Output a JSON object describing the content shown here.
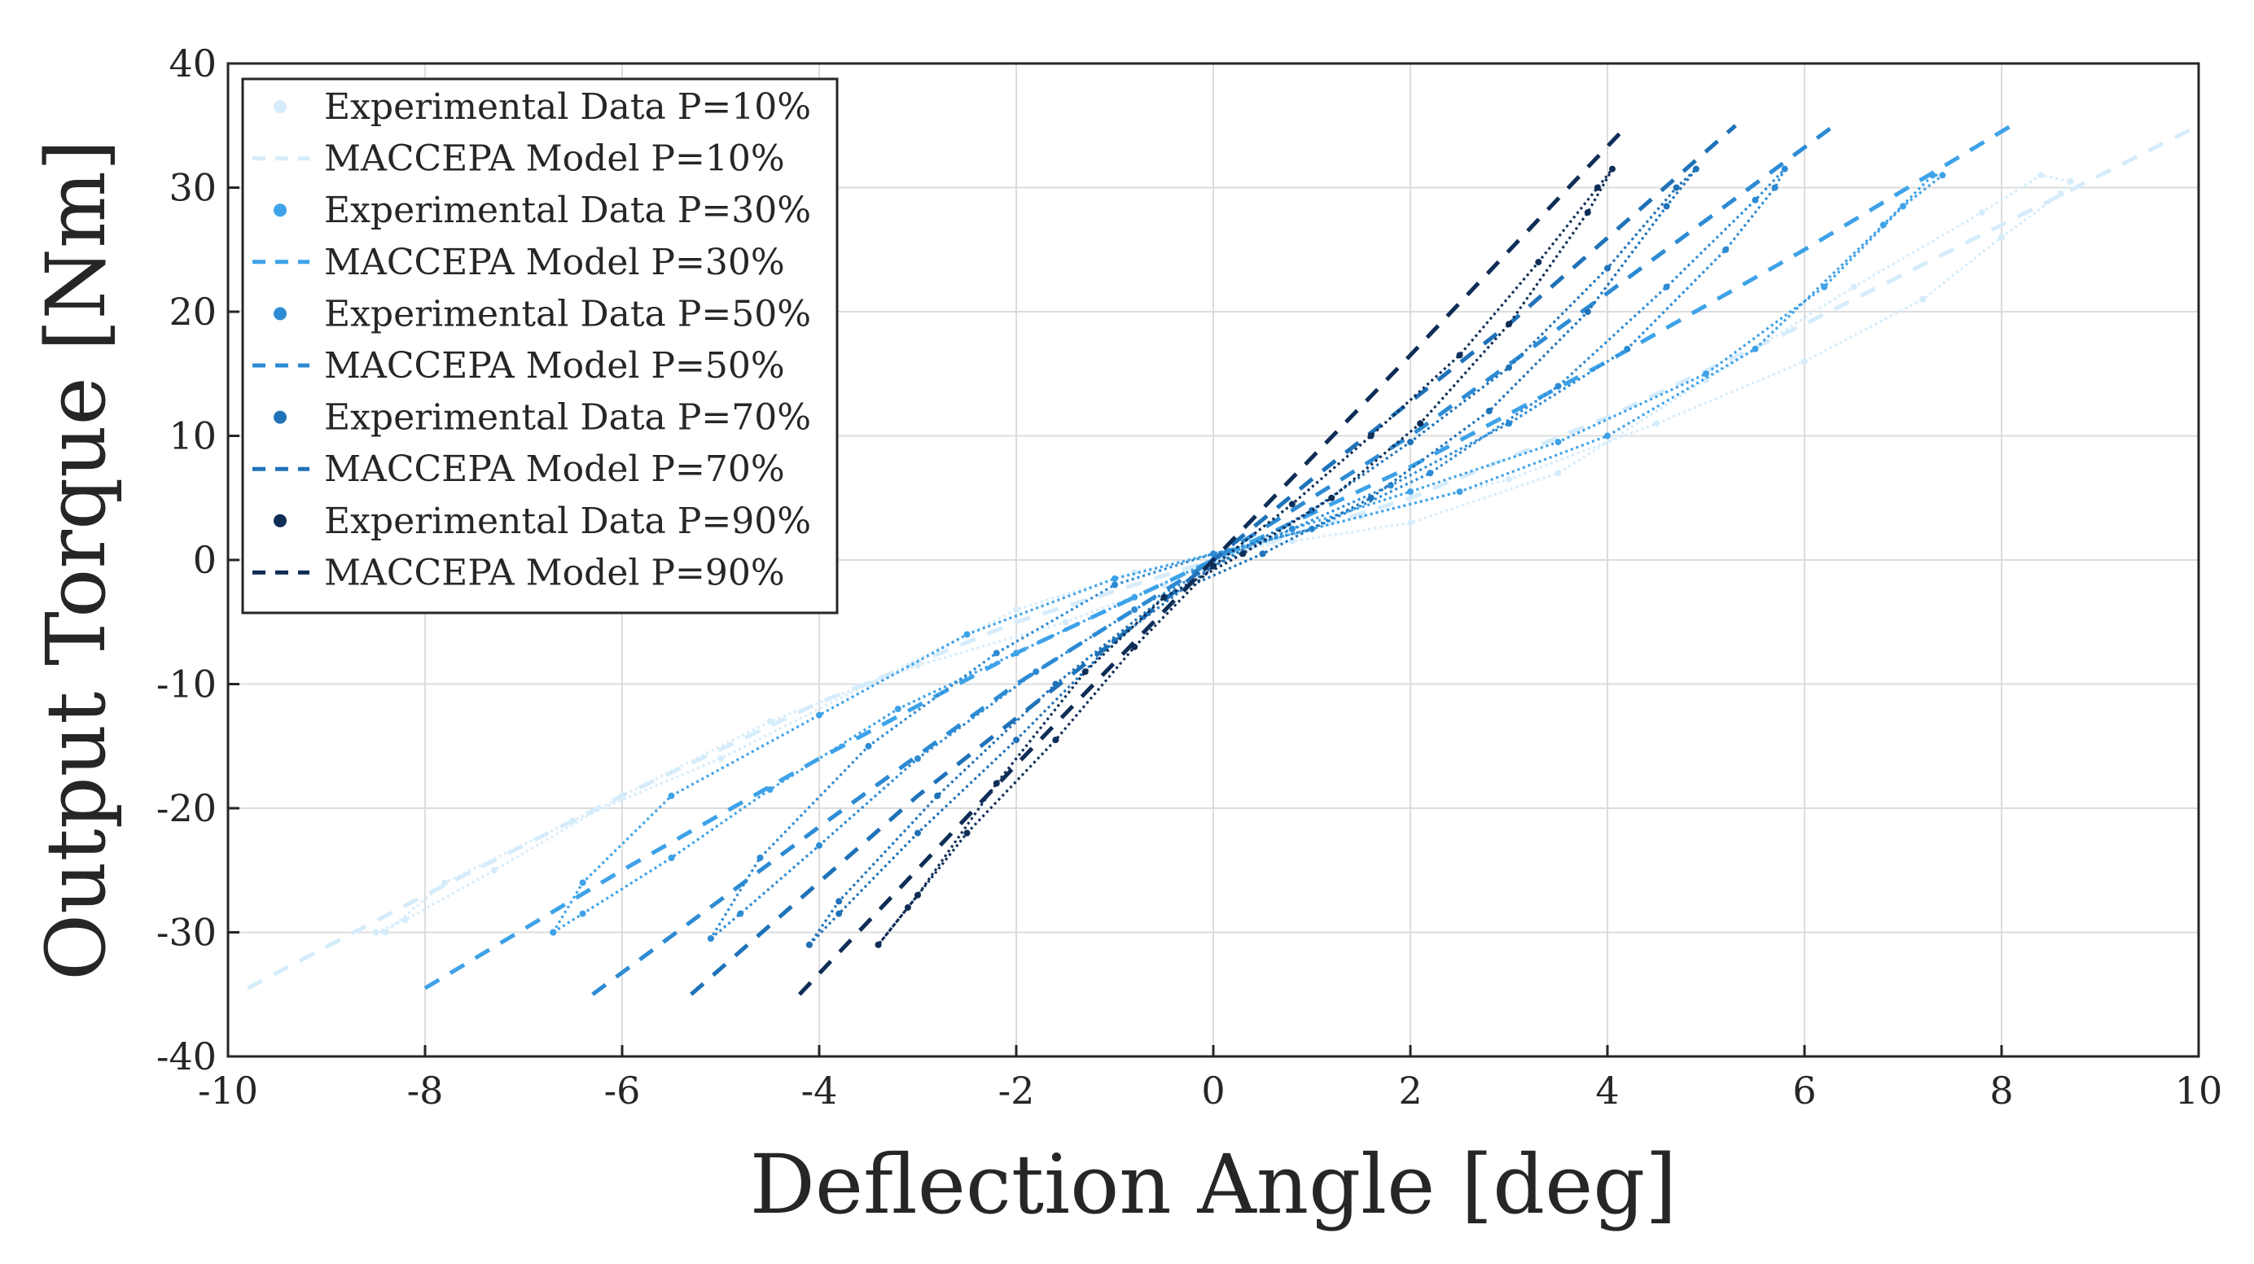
{
  "chart_data": {
    "type": "line",
    "xlabel": "Deflection Angle [deg]",
    "ylabel": "Output Torque [Nm]",
    "xlim": [
      -10,
      10
    ],
    "ylim": [
      -40,
      40
    ],
    "xticks": [
      -10,
      -8,
      -6,
      -4,
      -2,
      0,
      2,
      4,
      6,
      8,
      10
    ],
    "yticks": [
      -40,
      -30,
      -20,
      -10,
      0,
      10,
      20,
      30,
      40
    ],
    "xtick_labels": [
      "-10",
      "-8",
      "-6",
      "-4",
      "-2",
      "0",
      "2",
      "4",
      "6",
      "8",
      "10"
    ],
    "ytick_labels": [
      "-40",
      "-30",
      "-20",
      "-10",
      "0",
      "10",
      "20",
      "30",
      "40"
    ],
    "grid": true,
    "legend_position": "top-left",
    "series": [
      {
        "name": "Experimental Data P=10%",
        "style": "dots",
        "color": "#d6ecfb",
        "x": [
          -8.5,
          -8.2,
          -7.3,
          -6.0,
          -4.5,
          -3.0,
          -1.5,
          -0.5,
          0.0,
          0.5,
          1.5,
          3.0,
          4.5,
          6.0,
          7.2,
          8.0,
          8.6,
          8.7,
          8.4,
          7.8,
          6.5,
          5.0,
          3.5,
          2.0,
          0.8,
          0.0,
          -0.8,
          -2.0,
          -3.5,
          -5.0,
          -6.5,
          -7.8,
          -8.4,
          -8.5
        ],
        "y": [
          -30.0,
          -29.0,
          -25.0,
          -19.0,
          -13.0,
          -8.5,
          -5.0,
          -2.0,
          0.0,
          1.5,
          3.5,
          6.5,
          11.0,
          16.0,
          21.0,
          26.0,
          29.5,
          30.5,
          31.0,
          28.0,
          22.0,
          14.5,
          7.0,
          3.0,
          1.5,
          0.5,
          -1.0,
          -4.0,
          -10.0,
          -16.0,
          -21.0,
          -26.0,
          -30.0,
          -30.0
        ]
      },
      {
        "name": "MACCEPA Model P=10%",
        "style": "dashed",
        "color": "#d6ecfb",
        "x": [
          -9.8,
          -8.0,
          -6.0,
          -4.0,
          -2.0,
          0.0,
          2.0,
          4.0,
          6.0,
          8.0,
          10.0
        ],
        "y": [
          -34.5,
          -27.0,
          -19.0,
          -11.5,
          -5.0,
          0.0,
          5.0,
          11.5,
          19.0,
          27.0,
          35.0
        ]
      },
      {
        "name": "Experimental Data P=30%",
        "style": "dots",
        "color": "#3ea2e8",
        "x": [
          -6.7,
          -6.4,
          -5.5,
          -4.5,
          -3.2,
          -2.0,
          -0.8,
          0.0,
          0.8,
          2.0,
          3.5,
          5.0,
          6.2,
          7.0,
          7.4,
          7.3,
          6.8,
          5.5,
          4.0,
          2.5,
          1.0,
          0.0,
          -1.0,
          -2.5,
          -4.0,
          -5.5,
          -6.4,
          -6.7
        ],
        "y": [
          -30.0,
          -28.5,
          -24.0,
          -18.5,
          -12.0,
          -7.5,
          -3.0,
          0.0,
          2.5,
          5.5,
          9.5,
          15.0,
          22.0,
          28.5,
          31.0,
          31.0,
          27.0,
          17.0,
          10.0,
          5.5,
          2.5,
          0.5,
          -1.5,
          -6.0,
          -12.5,
          -19.0,
          -26.0,
          -30.0
        ]
      },
      {
        "name": "MACCEPA Model P=30%",
        "style": "dashed",
        "color": "#3ea2e8",
        "x": [
          -8.0,
          -6.0,
          -4.0,
          -2.0,
          0.0,
          2.0,
          4.0,
          6.0,
          8.1
        ],
        "y": [
          -34.5,
          -25.0,
          -16.0,
          -7.5,
          0.0,
          7.5,
          16.0,
          25.0,
          35.0
        ]
      },
      {
        "name": "Experimental Data P=50%",
        "style": "dots",
        "color": "#2d8bd4",
        "x": [
          -5.1,
          -4.8,
          -4.0,
          -3.0,
          -1.8,
          -0.8,
          0.0,
          0.8,
          1.8,
          3.0,
          4.2,
          5.2,
          5.7,
          5.8,
          5.5,
          4.6,
          3.5,
          2.2,
          1.0,
          0.0,
          -1.0,
          -2.2,
          -3.5,
          -4.6,
          -5.1
        ],
        "y": [
          -30.5,
          -28.5,
          -23.0,
          -16.0,
          -9.0,
          -4.0,
          -0.5,
          2.5,
          6.0,
          11.0,
          17.0,
          25.0,
          30.0,
          31.5,
          29.0,
          22.0,
          14.0,
          7.0,
          2.5,
          0.5,
          -2.0,
          -7.5,
          -15.0,
          -24.0,
          -30.5
        ]
      },
      {
        "name": "MACCEPA Model P=50%",
        "style": "dashed",
        "color": "#2d8bd4",
        "x": [
          -6.3,
          -4.0,
          -2.0,
          0.0,
          2.0,
          4.0,
          6.3
        ],
        "y": [
          -35.0,
          -21.5,
          -10.0,
          0.0,
          10.0,
          21.5,
          35.0
        ]
      },
      {
        "name": "Experimental Data P=70%",
        "style": "dots",
        "color": "#1f72b8",
        "x": [
          -4.1,
          -3.8,
          -3.0,
          -2.0,
          -1.0,
          0.0,
          1.0,
          2.0,
          3.0,
          4.0,
          4.7,
          4.9,
          4.6,
          3.8,
          2.8,
          1.6,
          0.5,
          -0.5,
          -1.6,
          -2.8,
          -3.8,
          -4.1
        ],
        "y": [
          -31.0,
          -28.5,
          -22.0,
          -14.5,
          -6.5,
          -0.5,
          4.0,
          9.5,
          15.5,
          23.5,
          30.0,
          31.5,
          28.5,
          20.0,
          12.0,
          5.0,
          0.5,
          -3.0,
          -10.0,
          -19.0,
          -27.5,
          -31.0
        ]
      },
      {
        "name": "MACCEPA Model P=70%",
        "style": "dashed",
        "color": "#1f72b8",
        "x": [
          -5.3,
          -3.0,
          -1.0,
          0.0,
          1.0,
          3.0,
          5.3
        ],
        "y": [
          -35.0,
          -19.0,
          -6.5,
          0.0,
          6.5,
          19.0,
          35.0
        ]
      },
      {
        "name": "Experimental Data P=90%",
        "style": "dots",
        "color": "#0e2d57",
        "x": [
          -3.4,
          -3.1,
          -2.5,
          -1.6,
          -0.8,
          0.0,
          0.8,
          1.6,
          2.5,
          3.3,
          3.9,
          4.05,
          3.8,
          3.0,
          2.1,
          1.2,
          0.3,
          -0.5,
          -1.3,
          -2.2,
          -3.0,
          -3.4
        ],
        "y": [
          -31.0,
          -28.0,
          -22.0,
          -14.5,
          -7.0,
          -0.5,
          4.5,
          10.0,
          16.5,
          24.0,
          30.0,
          31.5,
          28.0,
          19.0,
          11.0,
          5.0,
          0.5,
          -3.0,
          -9.0,
          -18.0,
          -27.0,
          -31.0
        ]
      },
      {
        "name": "MACCEPA Model P=90%",
        "style": "dashed",
        "color": "#0e2d57",
        "x": [
          -4.2,
          -2.0,
          0.0,
          2.0,
          4.2
        ],
        "y": [
          -35.0,
          -16.5,
          0.0,
          16.5,
          35.0
        ]
      }
    ]
  }
}
